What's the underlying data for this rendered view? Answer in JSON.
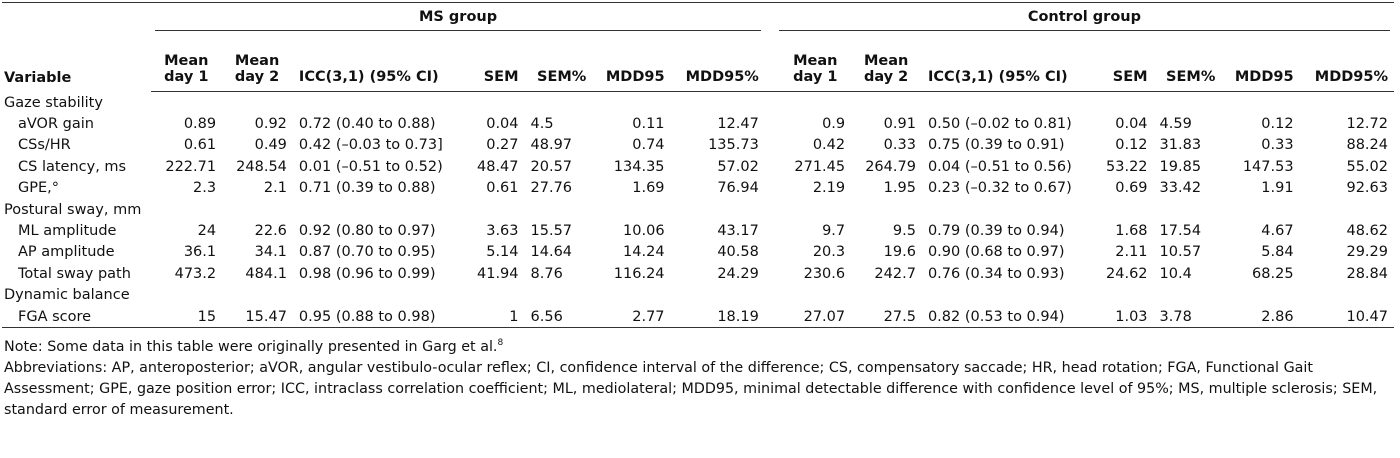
{
  "table": {
    "variable_header": "Variable",
    "groups": [
      {
        "name": "MS group",
        "columns": [
          "Mean day 1",
          "Mean day 2",
          "ICC(3,1) (95% CI)",
          "SEM",
          "SEM%",
          "MDD95",
          "MDD95%"
        ]
      },
      {
        "name": "Control group",
        "columns": [
          "Mean day 1",
          "Mean day 2",
          "ICC(3,1) (95% CI)",
          "SEM",
          "SEM%",
          "MDD95",
          "MDD95%"
        ]
      }
    ],
    "sections": [
      {
        "name": "Gaze stability",
        "rows": [
          {
            "label": "aVOR gain",
            "values": [
              "0.89",
              "0.92",
              "0.72 (0.40 to 0.88)",
              "0.04",
              "4.5",
              "0.11",
              "12.47",
              "0.9",
              "0.91",
              "0.50 (–0.02 to 0.81)",
              "0.04",
              "4.59",
              "0.12",
              "12.72"
            ]
          },
          {
            "label": "CSs/HR",
            "values": [
              "0.61",
              "0.49",
              "0.42 (–0.03 to 0.73]",
              "0.27",
              "48.97",
              "0.74",
              "135.73",
              "0.42",
              "0.33",
              "0.75 (0.39 to 0.91)",
              "0.12",
              "31.83",
              "0.33",
              "88.24"
            ]
          },
          {
            "label": "CS latency, ms",
            "values": [
              "222.71",
              "248.54",
              "0.01 (–0.51 to 0.52)",
              "48.47",
              "20.57",
              "134.35",
              "57.02",
              "271.45",
              "264.79",
              "0.04 (–0.51 to 0.56)",
              "53.22",
              "19.85",
              "147.53",
              "55.02"
            ]
          },
          {
            "label": "GPE,°",
            "values": [
              "2.3",
              "2.1",
              "0.71 (0.39 to 0.88)",
              "0.61",
              "27.76",
              "1.69",
              "76.94",
              "2.19",
              "1.95",
              "0.23 (–0.32 to 0.67)",
              "0.69",
              "33.42",
              "1.91",
              "92.63"
            ]
          }
        ]
      },
      {
        "name": "Postural sway, mm",
        "rows": [
          {
            "label": "ML amplitude",
            "values": [
              "24",
              "22.6",
              "0.92 (0.80 to 0.97)",
              "3.63",
              "15.57",
              "10.06",
              "43.17",
              "9.7",
              "9.5",
              "0.79 (0.39 to 0.94)",
              "1.68",
              "17.54",
              "4.67",
              "48.62"
            ]
          },
          {
            "label": "AP amplitude",
            "values": [
              "36.1",
              "34.1",
              "0.87 (0.70 to 0.95)",
              "5.14",
              "14.64",
              "14.24",
              "40.58",
              "20.3",
              "19.6",
              "0.90 (0.68 to 0.97)",
              "2.11",
              "10.57",
              "5.84",
              "29.29"
            ]
          },
          {
            "label": "Total sway path",
            "values": [
              "473.2",
              "484.1",
              "0.98 (0.96 to 0.99)",
              "41.94",
              "8.76",
              "116.24",
              "24.29",
              "230.6",
              "242.7",
              "0.76 (0.34 to 0.93)",
              "24.62",
              "10.4",
              "68.25",
              "28.84"
            ]
          }
        ]
      },
      {
        "name": "Dynamic balance",
        "rows": [
          {
            "label": "FGA score",
            "values": [
              "15",
              "15.47",
              "0.95 (0.88 to 0.98)",
              "1",
              "6.56",
              "2.77",
              "18.19",
              "27.07",
              "27.5",
              "0.82 (0.53 to 0.94)",
              "1.03",
              "3.78",
              "2.86",
              "10.47"
            ]
          }
        ]
      }
    ]
  },
  "notes": {
    "note": "Note: Some data in this table were originally presented in Garg et al.",
    "note_reference": "8",
    "abbreviations": "Abbreviations: AP, anteroposterior; aVOR, angular vestibulo-ocular reflex; CI, confidence interval of the difference; CS, compensatory saccade; HR, head rotation; FGA, Functional Gait Assessment; GPE, gaze position error; ICC, intraclass correlation coefficient; ML, mediolateral; MDD95, minimal detectable difference with confidence level of 95%; MS, multiple sclerosis; SEM, standard error of measurement."
  }
}
